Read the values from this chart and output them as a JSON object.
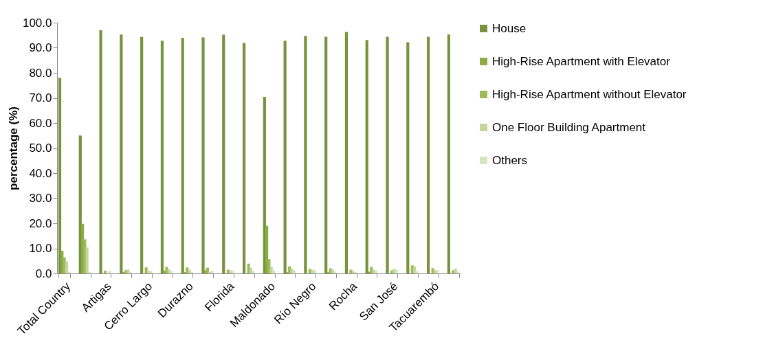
{
  "chart_data": {
    "type": "bar",
    "ylabel": "percentage (%)",
    "categories": [
      "Total Country",
      null,
      "Artigas",
      null,
      "Cerro Largo",
      null,
      "Durazno",
      null,
      "Florida",
      null,
      "Maldonado",
      null,
      "Río Negro",
      null,
      "Rocha",
      null,
      "San José",
      null,
      "Tacuarembó",
      null
    ],
    "series": [
      {
        "name": "House",
        "color": "#77933c",
        "values": [
          78,
          55,
          97,
          95.3,
          94.3,
          92.8,
          94,
          94.1,
          95.2,
          91.9,
          70.4,
          92.8,
          94.7,
          94.4,
          96.3,
          93.1,
          94.4,
          92.2,
          94.4,
          95.3
        ]
      },
      {
        "name": "High-Rise Apartment with Elevator",
        "color": "#8aab46",
        "values": [
          9.0,
          19.8,
          0,
          0.5,
          0,
          1.1,
          0.5,
          1.3,
          0,
          0,
          19.0,
          0.5,
          0,
          0.5,
          0,
          0.7,
          0,
          0,
          0,
          0
        ]
      },
      {
        "name": "High-Rise Apartment without Elevator",
        "color": "#9bbb59",
        "values": [
          6.4,
          13.6,
          1.1,
          1.3,
          2.4,
          2.6,
          2.4,
          2.3,
          1.5,
          3.9,
          5.7,
          2.8,
          1.8,
          2.0,
          1.5,
          2.6,
          1.2,
          3.2,
          2.1,
          1.3
        ]
      },
      {
        "name": "One Floor Building Apartment",
        "color": "#c3d69b",
        "values": [
          4.8,
          10.4,
          0,
          1.6,
          1.1,
          1.6,
          1.5,
          0.5,
          1.2,
          2.3,
          2.6,
          1.8,
          1.3,
          1.5,
          0.8,
          1.5,
          1.8,
          2.8,
          1.3,
          2.0
        ]
      },
      {
        "name": "Others",
        "color": "#d7e4bd",
        "values": [
          0.7,
          0.5,
          1.0,
          0.7,
          1.0,
          1.0,
          0.7,
          1.0,
          1.0,
          1.0,
          1.3,
          1.3,
          1.5,
          0.7,
          0.5,
          1.2,
          1.5,
          0.8,
          1.3,
          0.8
        ]
      }
    ],
    "ylim": [
      0,
      100
    ],
    "yticks": [
      {
        "value": 0,
        "label": "0.0"
      },
      {
        "value": 10,
        "label": "10.0"
      },
      {
        "value": 20,
        "label": "20.0"
      },
      {
        "value": 30,
        "label": "30.0"
      },
      {
        "value": 40,
        "label": "40.0"
      },
      {
        "value": 50,
        "label": "50.0"
      },
      {
        "value": 60,
        "label": "60.0"
      },
      {
        "value": 70,
        "label": "70.0"
      },
      {
        "value": 80,
        "label": "80.0"
      },
      {
        "value": 90,
        "label": "90.0"
      },
      {
        "value": 100,
        "label": "100.0"
      }
    ],
    "grid": false,
    "legend": "right"
  }
}
